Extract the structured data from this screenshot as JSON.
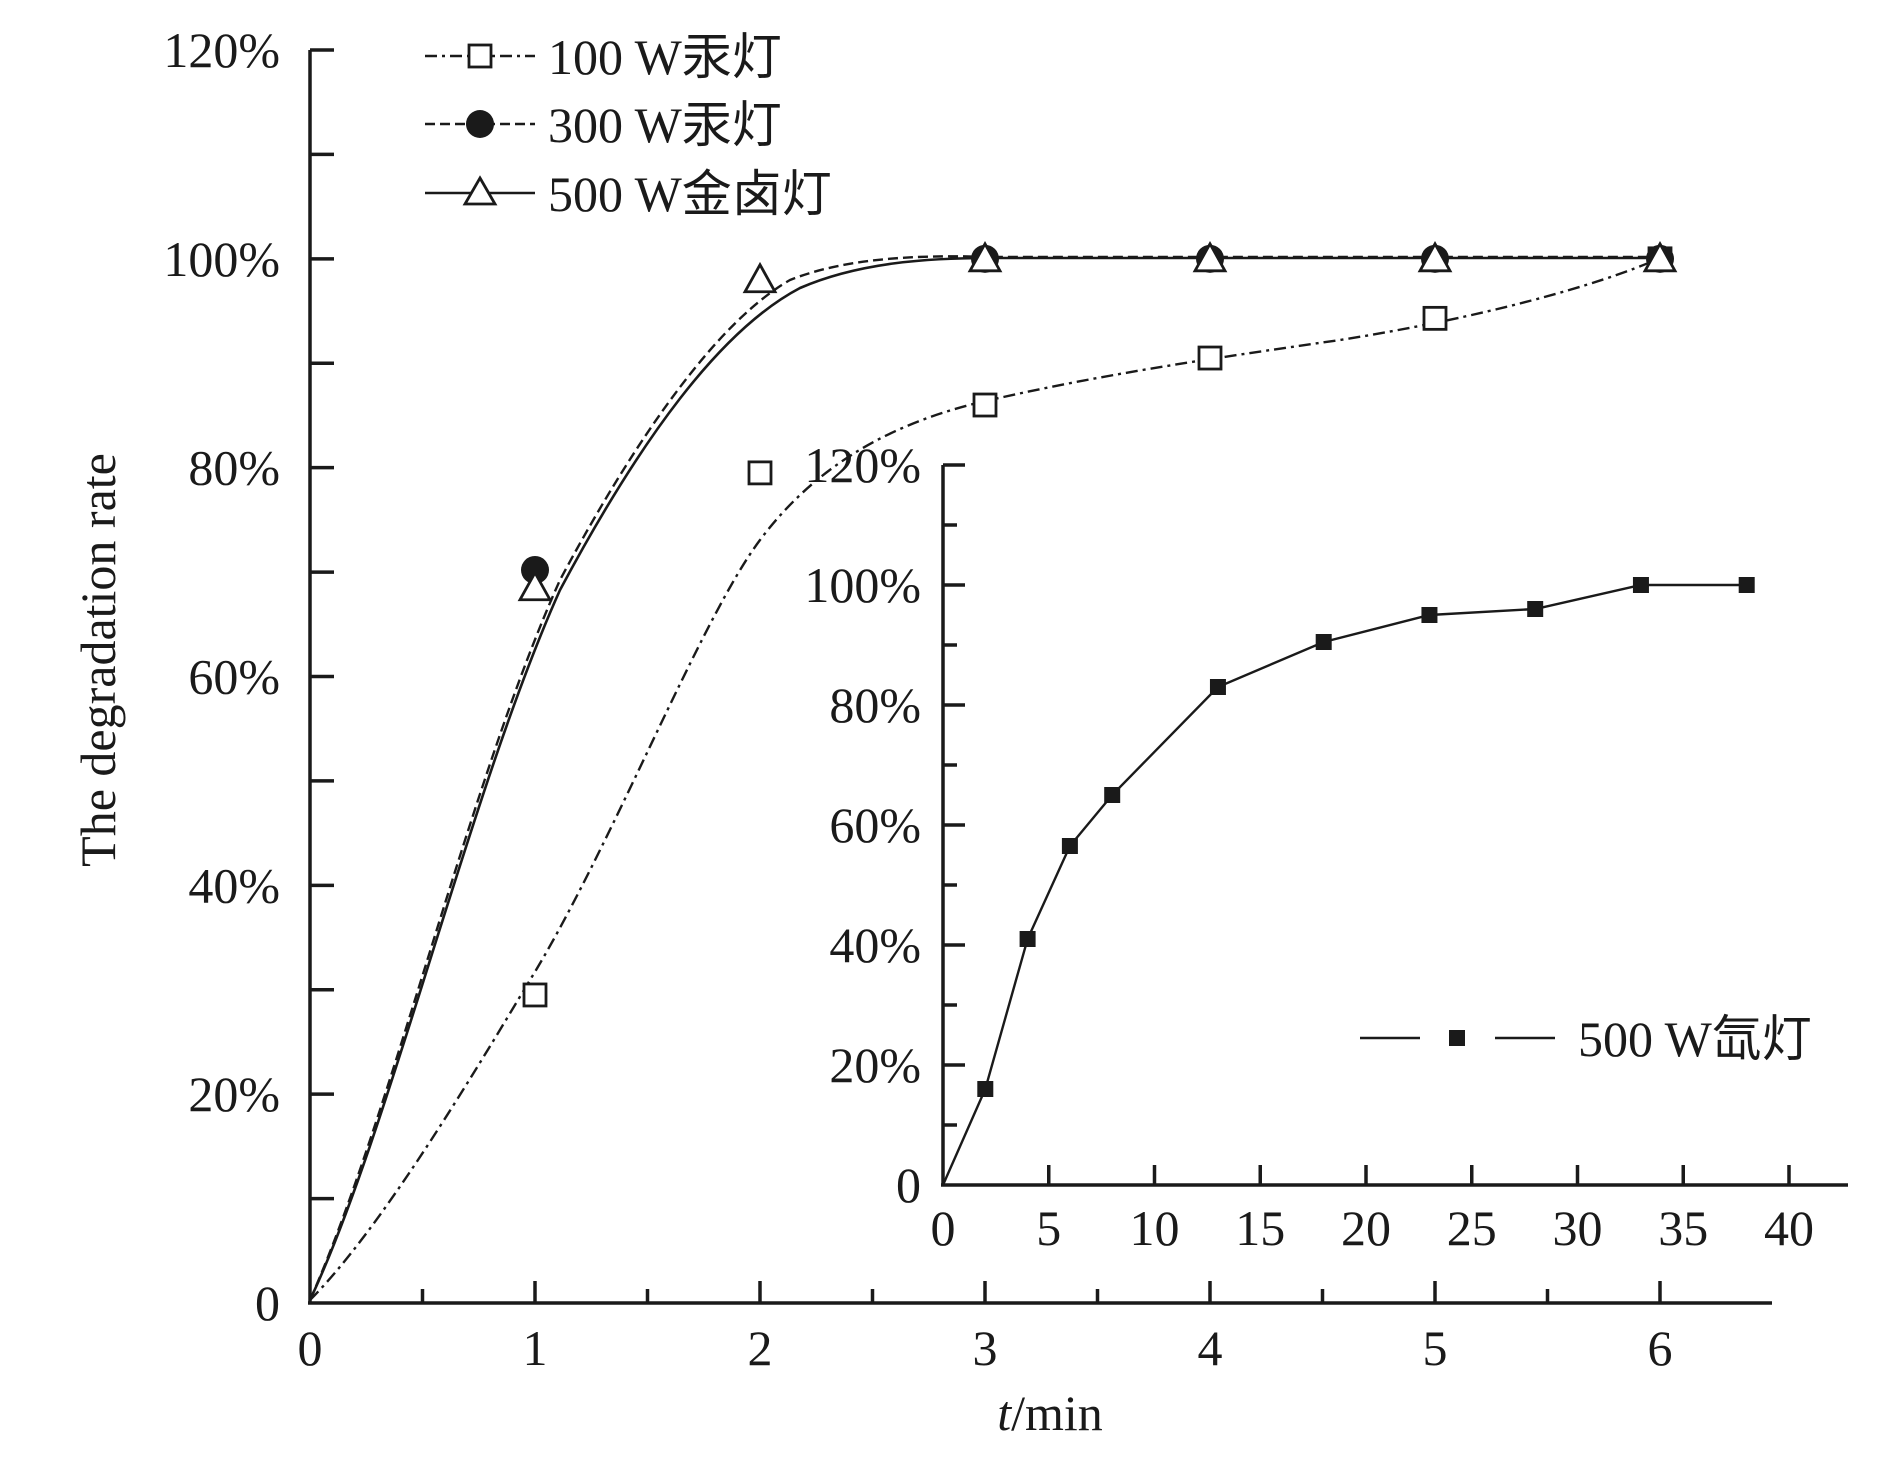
{
  "chart_data": [
    {
      "type": "line",
      "role": "main",
      "xlabel_italic": "t",
      "xlabel_rest": "/min",
      "ylabel": "The degradation rate",
      "xlim": [
        0,
        6.5
      ],
      "ylim": [
        0,
        120
      ],
      "x_ticks": [
        0,
        1,
        2,
        3,
        4,
        5,
        6
      ],
      "x_tick_labels": [
        "0",
        "1",
        "2",
        "3",
        "4",
        "5",
        "6"
      ],
      "y_ticks": [
        0,
        20,
        40,
        60,
        80,
        100,
        120
      ],
      "y_tick_labels": [
        "0",
        "20%",
        "40%",
        "60%",
        "80%",
        "100%",
        "120%"
      ],
      "series": [
        {
          "name": "100 W汞灯",
          "marker": "open-square",
          "line_style": "dash-dot",
          "x": [
            1,
            2,
            3,
            4,
            5,
            6
          ],
          "y": [
            29.5,
            79.5,
            86,
            90.5,
            94.3,
            100
          ]
        },
        {
          "name": "300 W汞灯",
          "marker": "filled-circle",
          "line_style": "dashed",
          "x": [
            1,
            3,
            4,
            5,
            6
          ],
          "y": [
            70.2,
            100,
            100,
            100,
            100
          ]
        },
        {
          "name": "500 W金卤灯",
          "marker": "open-triangle",
          "line_style": "solid",
          "x": [
            1,
            2,
            3,
            4,
            5,
            6
          ],
          "y": [
            68.5,
            98,
            100,
            100,
            100,
            100
          ]
        }
      ],
      "legend_position": "top-left"
    },
    {
      "type": "line",
      "role": "inset",
      "xlim": [
        0,
        42
      ],
      "ylim": [
        0,
        120
      ],
      "x_ticks": [
        0,
        5,
        10,
        15,
        20,
        25,
        30,
        35,
        40
      ],
      "x_tick_labels": [
        "0",
        "5",
        "10",
        "15",
        "20",
        "25",
        "30",
        "35",
        "40"
      ],
      "y_ticks": [
        0,
        20,
        40,
        60,
        80,
        100,
        120
      ],
      "y_tick_labels": [
        "0",
        "20%",
        "40%",
        "60%",
        "80%",
        "100%",
        "120%"
      ],
      "series": [
        {
          "name": "500 W氙灯",
          "marker": "filled-square",
          "line_style": "solid",
          "x": [
            0,
            2,
            4,
            6,
            8,
            13,
            18,
            23,
            28,
            33,
            38
          ],
          "y": [
            0,
            16,
            41,
            56.5,
            65,
            83,
            90.5,
            95,
            96,
            100,
            100
          ]
        }
      ],
      "legend_position": "right"
    }
  ]
}
